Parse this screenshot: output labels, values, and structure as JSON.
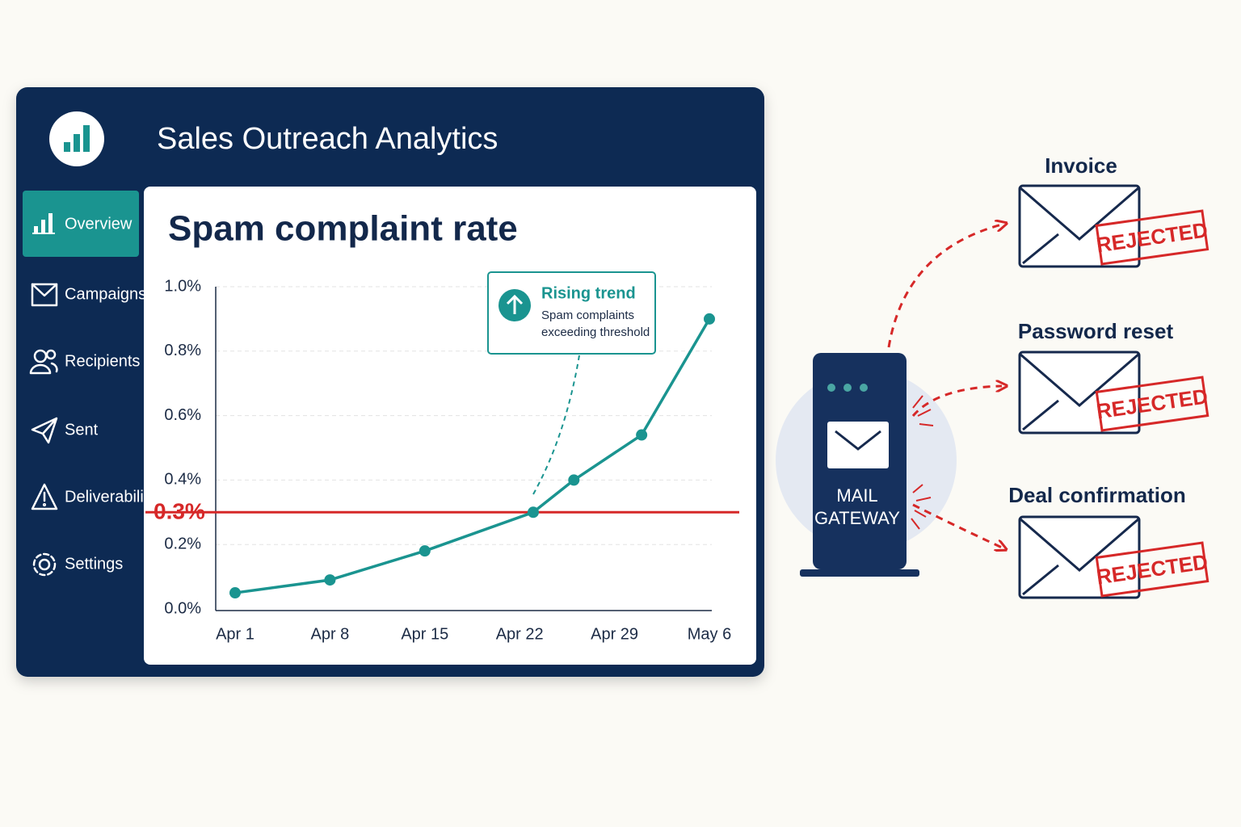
{
  "app": {
    "title": "Sales Outreach Analytics",
    "nav": [
      "Overview",
      "Campaigns",
      "Recipients",
      "Sent",
      "Deliverability",
      "Settings"
    ]
  },
  "chart_data": {
    "type": "line",
    "title": "Spam complaint rate",
    "x": [
      "Apr 1",
      "Apr 8",
      "Apr 15",
      "Apr 23",
      "Apr 26",
      "May 1",
      "May 6"
    ],
    "values": [
      0.05,
      0.09,
      0.18,
      0.3,
      0.4,
      0.54,
      0.9
    ],
    "color": "#1a9490",
    "xlim": [
      "Apr 1",
      "May 6"
    ],
    "xticks": [
      "Apr 1",
      "Apr 8",
      "Apr 15",
      "Apr 22",
      "Apr 29",
      "May 6"
    ],
    "ylim": [
      0,
      1
    ],
    "yticks": [
      {
        "value": 0,
        "label": "0.0%"
      },
      {
        "value": 0.2,
        "label": "0.2%"
      },
      {
        "value": 0.4,
        "label": "0.4%"
      },
      {
        "value": 0.6,
        "label": "0.6%"
      },
      {
        "value": 0.8,
        "label": "0.8%"
      },
      {
        "value": 1,
        "label": "1.0%"
      }
    ],
    "grid": true,
    "threshold": {
      "value": 0.3,
      "label": "0.3%",
      "color": "#d62828"
    },
    "annotation": {
      "title": "Rising trend",
      "text": [
        "Spam complaints",
        "exceeding threshold"
      ]
    }
  },
  "gateway": {
    "label": [
      "MAIL",
      "GATEWAY"
    ]
  },
  "emails": [
    {
      "label": "Invoice",
      "status": "REJECTED"
    },
    {
      "label": "Password reset",
      "status": "REJECTED"
    },
    {
      "label": "Deal confirmation",
      "status": "REJECTED"
    }
  ]
}
